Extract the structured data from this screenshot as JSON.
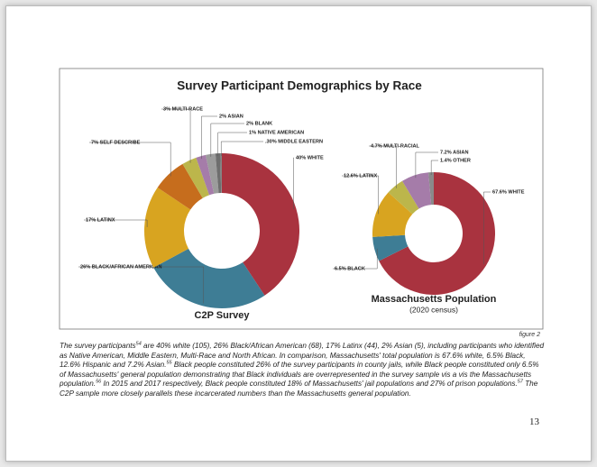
{
  "figure_title": "Survey Participant Demographics by Race",
  "figure_label": "figure 2",
  "chart_data": [
    {
      "type": "donut",
      "title": "C2P Survey",
      "values": [
        40,
        26,
        17,
        7,
        3,
        2,
        2,
        1,
        0.3
      ],
      "value_labels": [
        "40% WHITE",
        "26% BLACK/AFRICAN AMERICAN",
        "17% LATINX",
        "7% SELF DESCRIBE",
        "3% MULTI-RACE",
        "2% ASIAN",
        "2% BLANK",
        "1% NATIVE AMERICAN",
        ".30% MIDDLE EASTERN"
      ],
      "colors": [
        "#a9333f",
        "#3e7d95",
        "#d8a420",
        "#c66d1d",
        "#bcb64b",
        "#a57ca9",
        "#9c9c9c",
        "#6e6e6e",
        "#858585"
      ]
    },
    {
      "type": "donut",
      "title": "Massachusetts Population",
      "subtitle": "(2020 census)",
      "values": [
        67.6,
        6.5,
        12.6,
        4.7,
        7.2,
        1.4
      ],
      "value_labels": [
        "67.6% WHITE",
        "6.5% BLACK",
        "12.6% LATINX",
        "4.7% MULTI-RACIAL",
        "7.2% ASIAN",
        "1.4% OTHER"
      ],
      "colors": [
        "#a9333f",
        "#3e7d95",
        "#d8a420",
        "#bcb64b",
        "#a57ca9",
        "#8a8a8a"
      ]
    }
  ],
  "caption": [
    {
      "text": "The survey participants"
    },
    {
      "sup": "54"
    },
    {
      "text": " are 40% white (105), 26% Black/African American (68), 17% Latinx (44), 2% Asian (5), including participants who identified as Native American, Middle Eastern, Multi-Race and North African. In comparison, Massachusetts' total population is 67.6% white, 6.5% Black, 12.6% Hispanic and 7.2% Asian."
    },
    {
      "sup": "55"
    },
    {
      "text": " Black people constituted 26% of the survey participants in county jails, while Black people constituted only 6.5% of Massachusetts' general population demonstrating that Black individuals are overrepresented in the survey sample vis a vis the Massachusetts population."
    },
    {
      "sup": "56"
    },
    {
      "text": " In 2015 and 2017 respectively, Black people constituted 18% of Massachusetts' jail populations and 27% of prison populations."
    },
    {
      "sup": "57"
    },
    {
      "text": " The C2P sample more closely parallels these incarcerated numbers than the Massachusetts general population."
    }
  ],
  "page_number": "13"
}
